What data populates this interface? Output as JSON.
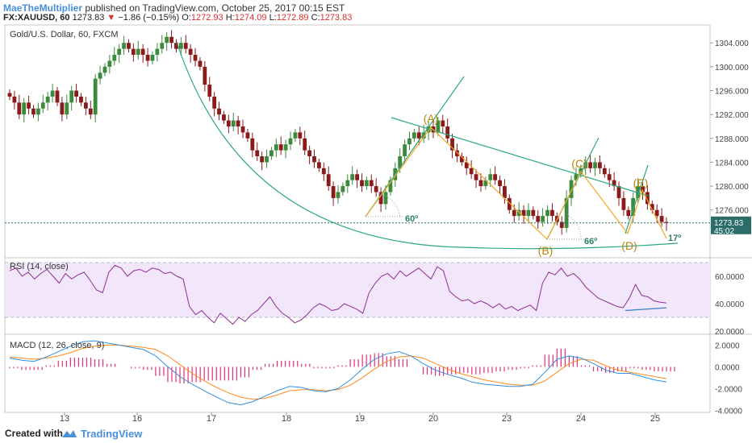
{
  "header": {
    "author": "MaeTheMultiplier",
    "published": "published on TradingView.com, October 25, 2017 00:15 EST",
    "symbol": "FX:XAUUSD, 60",
    "last": "1273.83",
    "arrow": "▼",
    "change": "−1.86 (−0.15%)",
    "o_label": "O:",
    "o_value": "1272.93",
    "h_label": "H:",
    "h_value": "1274.09",
    "l_label": "L:",
    "l_value": "1272.89",
    "c_label": "C:",
    "c_value": "1273.83"
  },
  "footer": {
    "created_with": "Created with",
    "brand": "TradingView"
  },
  "colors": {
    "up": "#3c8a3c",
    "down": "#8b1a1a",
    "green_line": "#2ca87f",
    "orange_line": "#f5a623",
    "wave_label": "#b8860b",
    "rsi": "#8e2f91",
    "rsi_bg": "#f2e6fb",
    "macd": "#2f8fdd",
    "signal": "#ff8a1c",
    "hist": "#e0307a",
    "price_tag": "#2b6e69"
  },
  "chart_data": [
    {
      "type": "candlestick",
      "title": "Gold/U.S. Dollar, 60, FXCM",
      "ylim": [
        1268,
        1307
      ],
      "y_ticks": [
        1276.0,
        1280.0,
        1284.0,
        1288.0,
        1292.0,
        1296.0,
        1300.0,
        1304.0
      ],
      "y_tick_labels": [
        "1276.000",
        "1280.000",
        "1284.000",
        "1288.000",
        "1292.000",
        "1296.000",
        "1300.000",
        "1304.000"
      ],
      "x_ticks": [
        "13",
        "16",
        "17",
        "18",
        "19",
        "20",
        "23",
        "24",
        "25"
      ],
      "close_path": [
        1295,
        1294,
        1292,
        1294,
        1293,
        1292,
        1293,
        1294,
        1295,
        1296,
        1294,
        1292,
        1294,
        1296,
        1295,
        1294,
        1293,
        1292,
        1298,
        1299,
        1300,
        1301,
        1302,
        1303,
        1304,
        1303,
        1302,
        1303,
        1302,
        1301,
        1302,
        1303,
        1304,
        1305,
        1304,
        1303,
        1304,
        1303,
        1302,
        1301,
        1300,
        1297,
        1295,
        1293,
        1292,
        1291,
        1290,
        1291,
        1290,
        1289,
        1288,
        1286,
        1285,
        1284,
        1285,
        1286,
        1287,
        1286,
        1287,
        1288,
        1289,
        1288,
        1286,
        1285,
        1284,
        1283,
        1282,
        1280,
        1278,
        1279,
        1280,
        1281,
        1282,
        1281,
        1280,
        1281,
        1280,
        1279,
        1277,
        1279,
        1281,
        1283,
        1285,
        1287,
        1288,
        1289,
        1288,
        1289,
        1290,
        1289,
        1291,
        1290,
        1288,
        1286,
        1285,
        1284,
        1283,
        1282,
        1281,
        1280,
        1281,
        1282,
        1281,
        1280,
        1278,
        1276,
        1275,
        1276,
        1275,
        1276,
        1275,
        1274,
        1275,
        1276,
        1275,
        1274,
        1273,
        1278,
        1281,
        1282,
        1283,
        1284,
        1283,
        1284,
        1283,
        1282,
        1281,
        1280,
        1278,
        1276,
        1275,
        1278,
        1280,
        1279,
        1277,
        1276,
        1275,
        1274,
        1273.83
      ],
      "price_tag": "1273.83",
      "countdown": "45:02",
      "annotations": {
        "waves": [
          "(A)",
          "(B)",
          "(C)",
          "(D)",
          "(E)"
        ],
        "angle_1": "60º",
        "angle_2": "66º",
        "angle_3": "17º"
      }
    },
    {
      "type": "line",
      "title": "RSI (14, close)",
      "ylim": [
        20,
        70
      ],
      "y_ticks": [
        20,
        40,
        60
      ],
      "y_tick_labels": [
        "20.0000",
        "40.0000",
        "60.0000"
      ],
      "band": [
        30,
        70
      ],
      "values": [
        64,
        66,
        60,
        63,
        58,
        62,
        65,
        60,
        55,
        62,
        58,
        61,
        63,
        57,
        50,
        48,
        63,
        68,
        66,
        60,
        64,
        65,
        63,
        66,
        65,
        62,
        63,
        60,
        58,
        38,
        32,
        35,
        30,
        26,
        33,
        29,
        25,
        30,
        27,
        32,
        35,
        40,
        45,
        38,
        33,
        30,
        26,
        28,
        32,
        37,
        40,
        38,
        35,
        36,
        40,
        38,
        36,
        33,
        48,
        55,
        60,
        62,
        58,
        64,
        60,
        63,
        66,
        62,
        58,
        67,
        64,
        49,
        45,
        42,
        43,
        40,
        42,
        40,
        37,
        40,
        36,
        38,
        35,
        37,
        39,
        35,
        55,
        63,
        61,
        66,
        60,
        62,
        58,
        52,
        48,
        44,
        42,
        40,
        38,
        37,
        44,
        54,
        46,
        45,
        42,
        41,
        40.5
      ]
    },
    {
      "type": "line",
      "title": "MACD (12, 26, close, 9)",
      "ylim": [
        -4.2,
        3.0
      ],
      "y_ticks": [
        -4.0,
        -2.0,
        0.0,
        2.0
      ],
      "y_tick_labels": [
        "-4.0000",
        "-2.0000",
        "0.0000",
        "2.0000"
      ],
      "series": [
        {
          "name": "MACD",
          "values": [
            0.8,
            0.6,
            0.5,
            0.9,
            1.4,
            1.9,
            2.3,
            2.4,
            2.2,
            2.0,
            1.8,
            1.6,
            1.0,
            0.0,
            -0.9,
            -1.6,
            -2.2,
            -2.8,
            -3.3,
            -3.5,
            -3.2,
            -2.7,
            -2.2,
            -1.8,
            -1.9,
            -2.2,
            -2.3,
            -2.0,
            -1.2,
            -0.2,
            0.7,
            1.2,
            1.4,
            1.0,
            0.3,
            -0.3,
            -0.7,
            -1.0,
            -1.4,
            -1.6,
            -1.7,
            -1.8,
            -1.8,
            -1.6,
            -0.5,
            0.7,
            1.0,
            0.8,
            0.3,
            -0.3,
            -0.6,
            -0.6,
            -0.9,
            -1.2,
            -1.4
          ]
        },
        {
          "name": "Signal",
          "values": [
            0.9,
            0.8,
            0.7,
            0.8,
            1.0,
            1.3,
            1.7,
            1.9,
            2.0,
            2.0,
            1.9,
            1.8,
            1.6,
            1.0,
            0.2,
            -0.6,
            -1.3,
            -1.9,
            -2.4,
            -2.8,
            -3.0,
            -2.9,
            -2.6,
            -2.2,
            -2.1,
            -2.1,
            -2.2,
            -2.1,
            -1.7,
            -1.0,
            -0.2,
            0.5,
            0.9,
            1.0,
            0.8,
            0.3,
            -0.2,
            -0.6,
            -0.9,
            -1.2,
            -1.4,
            -1.6,
            -1.7,
            -1.7,
            -1.3,
            -0.5,
            0.3,
            0.7,
            0.6,
            0.1,
            -0.3,
            -0.5,
            -0.7,
            -0.9,
            -1.1
          ]
        }
      ]
    }
  ]
}
